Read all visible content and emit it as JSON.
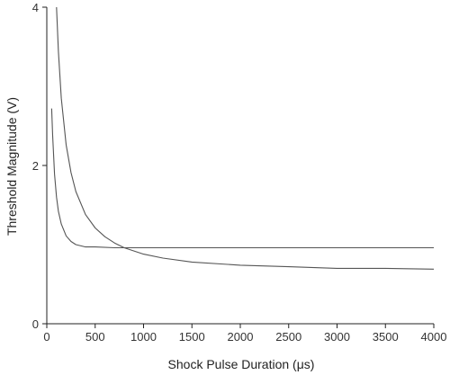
{
  "chart_data": {
    "type": "line",
    "title": "",
    "xlabel": "Shock Pulse Duration (μs)",
    "ylabel": "Threshold Magnitude (V)",
    "xlim": [
      0,
      4000
    ],
    "ylim": [
      0,
      4
    ],
    "x_ticks": [
      "0",
      "500",
      "1000",
      "1500",
      "2000",
      "2500",
      "3000",
      "3500",
      "4000"
    ],
    "y_ticks": [
      "0",
      "2",
      "4"
    ],
    "grid": false,
    "legend": "none",
    "line_color": "#555555",
    "series": [
      {
        "x": [
          50,
          60,
          80,
          100,
          120,
          150,
          200,
          250,
          300,
          400,
          500,
          700,
          1000,
          1500,
          2000,
          3000,
          4000
        ],
        "y": [
          2.72,
          2.38,
          1.89,
          1.6,
          1.42,
          1.26,
          1.11,
          1.04,
          1.0,
          0.97,
          0.97,
          0.96,
          0.96,
          0.96,
          0.96,
          0.96,
          0.96
        ]
      },
      {
        "x": [
          100,
          120,
          150,
          200,
          250,
          300,
          400,
          500,
          600,
          700,
          800,
          1000,
          1200,
          1500,
          2000,
          2500,
          3000,
          3500,
          4000
        ],
        "y": [
          4.0,
          3.44,
          2.85,
          2.26,
          1.91,
          1.67,
          1.38,
          1.21,
          1.1,
          1.02,
          0.96,
          0.88,
          0.83,
          0.78,
          0.74,
          0.72,
          0.7,
          0.7,
          0.69
        ]
      }
    ]
  }
}
